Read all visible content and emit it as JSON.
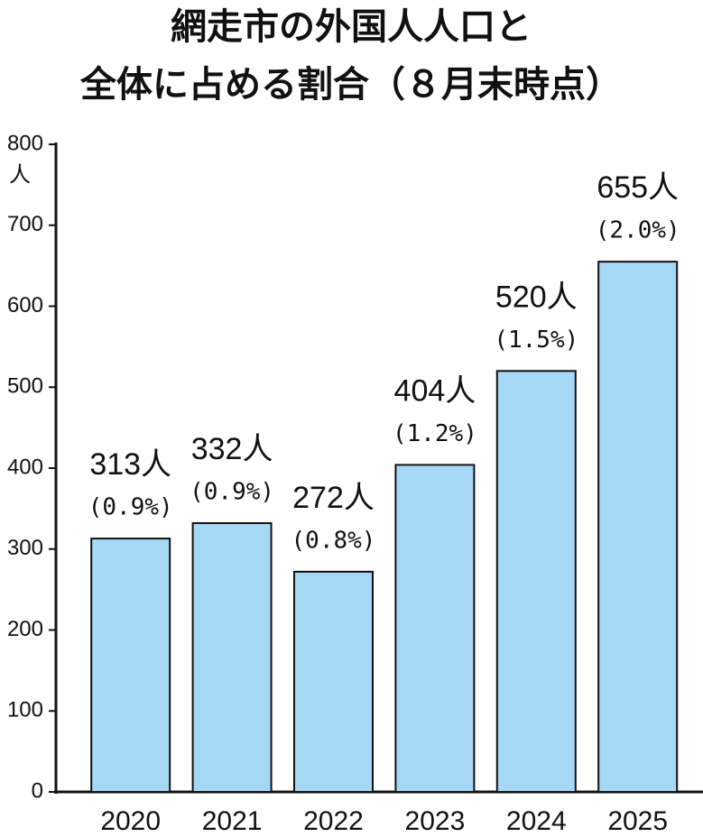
{
  "chart_data": {
    "type": "bar",
    "title_lines": [
      "網走市の外国人人口と",
      "全体に占める割合（８月末時点）"
    ],
    "y_unit": "人",
    "categories": [
      "2020",
      "2021",
      "2022",
      "2023",
      "2024",
      "2025"
    ],
    "values": [
      313,
      332,
      272,
      404,
      520,
      655
    ],
    "value_labels": [
      "313人",
      "332人",
      "272人",
      "404人",
      "520人",
      "655人"
    ],
    "share_labels": [
      "(0.9%)",
      "(0.9%)",
      "(0.8%)",
      "(1.2%)",
      "(1.5%)",
      "(2.0%)"
    ],
    "color": "#a6d8f5",
    "ylim": [
      0,
      800
    ],
    "yticks": [
      0,
      100,
      200,
      300,
      400,
      500,
      600,
      700,
      800
    ]
  }
}
